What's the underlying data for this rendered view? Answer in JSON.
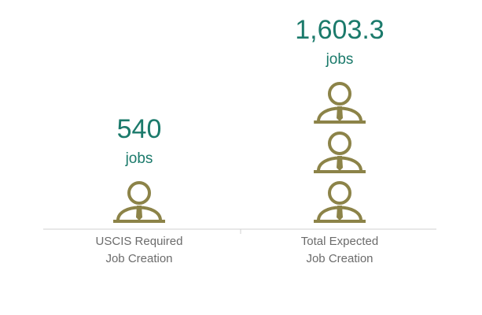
{
  "chart_data": {
    "type": "pictograph",
    "categories": [
      "USCIS Required Job Creation",
      "Total Expected Job Creation"
    ],
    "values": [
      540,
      1603.3
    ],
    "value_labels": [
      "540",
      "1,603.3"
    ],
    "unit": "jobs",
    "color": "#8c8348",
    "label_color": "#1b7a6b"
  }
}
